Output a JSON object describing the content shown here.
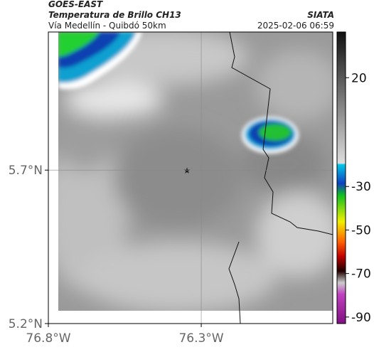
{
  "header": {
    "product": "GOES-EAST",
    "title": "Temperatura de Brillo CH13",
    "subtitle": "Vía Medellín - Quibdó 50km",
    "source": "SIATA",
    "datetime": "2025-02-06 06:59"
  },
  "map": {
    "xlim": [
      -76.8,
      -75.87
    ],
    "ylim": [
      5.2,
      6.15
    ],
    "xticks": [
      {
        "value": -76.8,
        "label": "76.8°W"
      },
      {
        "value": -76.3,
        "label": "76.3°W"
      }
    ],
    "yticks": [
      {
        "value": 5.2,
        "label": "5.2°N"
      },
      {
        "value": 5.7,
        "label": "5.7°N"
      }
    ],
    "colorbar": {
      "clim": [
        41,
        -93
      ],
      "ticks": [
        20,
        -30,
        -50,
        -70,
        -90
      ]
    }
  }
}
